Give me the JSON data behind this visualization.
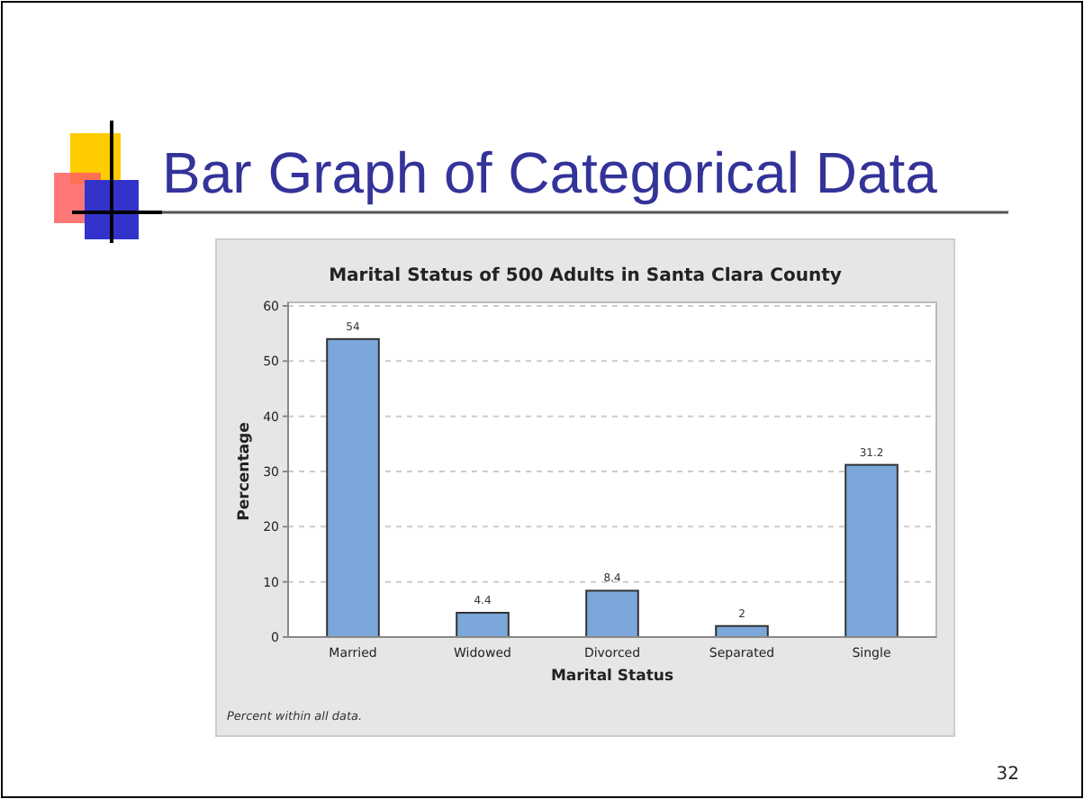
{
  "chart_data": {
    "type": "bar",
    "title": "Bar Graph of Categorical Data",
    "subtitle": "Marital Status of 500 Adults in Santa Clara County",
    "xlabel": "Marital Status",
    "ylabel": "Percentage",
    "categories": [
      "Married",
      "Widowed",
      "Divorced",
      "Separated",
      "Single"
    ],
    "values": [
      54,
      4.4,
      8.4,
      2,
      31.2
    ],
    "color": "#7ba7da",
    "ylim": [
      0,
      60
    ],
    "yticks": [
      0,
      10,
      20,
      30,
      40,
      50,
      60
    ],
    "grid": "y",
    "data_labels": true,
    "annotations": [
      "Percent within all data.",
      "32"
    ]
  }
}
